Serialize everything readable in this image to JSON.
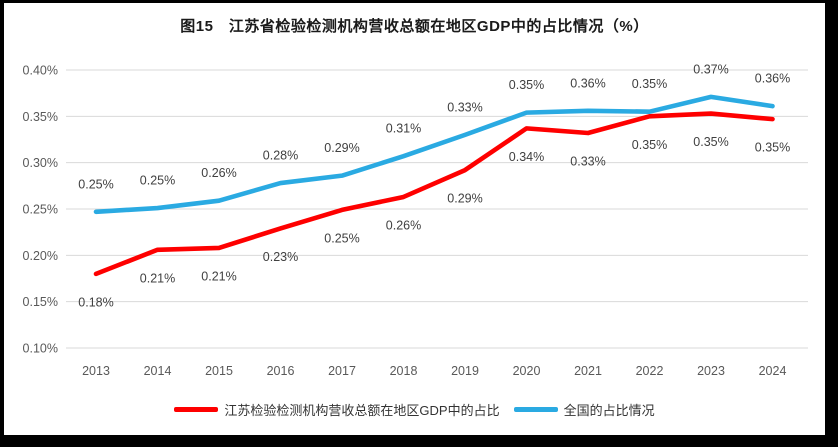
{
  "chart_data": {
    "type": "line",
    "title": "图15　江苏省检验检测机构营收总额在地区GDP中的占比情况（%）",
    "categories": [
      "2013",
      "2014",
      "2015",
      "2016",
      "2017",
      "2018",
      "2019",
      "2020",
      "2021",
      "2022",
      "2023",
      "2024"
    ],
    "series": [
      {
        "name": "江苏检验检测机构营收总额在地区GDP中的占比",
        "color": "#fe0000",
        "values": [
          0.18,
          0.21,
          0.21,
          0.23,
          0.25,
          0.26,
          0.29,
          0.34,
          0.33,
          0.35,
          0.35,
          0.35
        ],
        "labels": [
          "0.18%",
          "0.21%",
          "0.21%",
          "0.23%",
          "0.25%",
          "0.26%",
          "0.29%",
          "0.34%",
          "0.33%",
          "0.35%",
          "0.35%",
          "0.35%"
        ],
        "plot_values": [
          0.18,
          0.206,
          0.208,
          0.229,
          0.249,
          0.263,
          0.292,
          0.337,
          0.332,
          0.35,
          0.353,
          0.347
        ],
        "label_position": "below"
      },
      {
        "name": "全国的占比情况",
        "color": "#2aaae2",
        "values": [
          0.25,
          0.25,
          0.26,
          0.28,
          0.29,
          0.31,
          0.33,
          0.35,
          0.36,
          0.35,
          0.37,
          0.36
        ],
        "labels": [
          "0.25%",
          "0.25%",
          "0.26%",
          "0.28%",
          "0.29%",
          "0.31%",
          "0.33%",
          "0.35%",
          "0.36%",
          "0.35%",
          "0.37%",
          "0.36%"
        ],
        "plot_values": [
          0.247,
          0.251,
          0.259,
          0.278,
          0.286,
          0.307,
          0.33,
          0.354,
          0.356,
          0.355,
          0.371,
          0.361
        ],
        "label_position": "above"
      }
    ],
    "xlabel": "",
    "ylabel": "",
    "ylim": [
      0.1,
      0.4
    ],
    "yticks": [
      {
        "value": 0.4,
        "label": "0.40%"
      },
      {
        "value": 0.35,
        "label": "0.35%"
      },
      {
        "value": 0.3,
        "label": "0.30%"
      },
      {
        "value": 0.25,
        "label": "0.25%"
      },
      {
        "value": 0.2,
        "label": "0.20%"
      },
      {
        "value": 0.15,
        "label": "0.15%"
      },
      {
        "value": 0.1,
        "label": "0.10%"
      }
    ],
    "grid": true,
    "legend_position": "bottom"
  },
  "colors": {
    "grid": "#d9d9d9",
    "axis_text": "#595959",
    "label_text": "#404040",
    "frame": "#000000",
    "background": "#ffffff"
  }
}
